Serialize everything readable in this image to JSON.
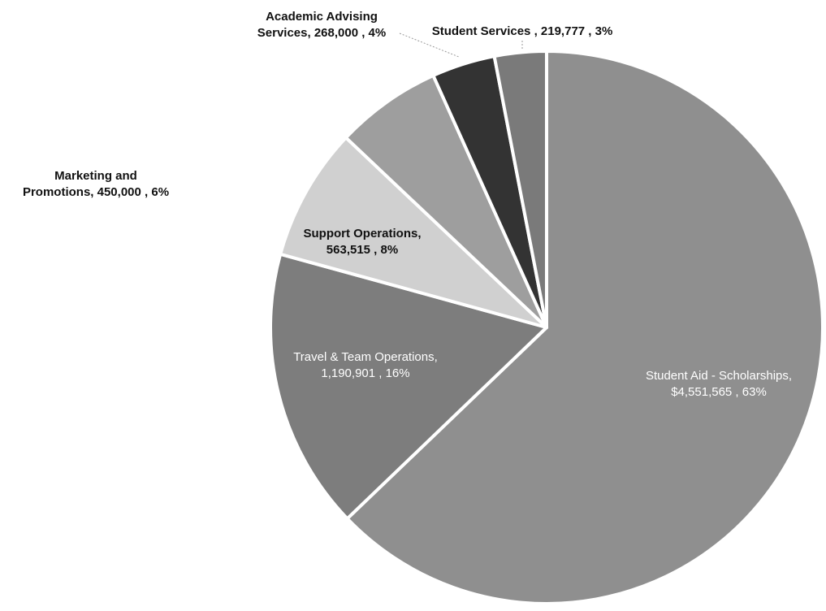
{
  "chart_data": {
    "type": "pie",
    "title": "",
    "slices": [
      {
        "name": "Student Aid - Scholarships",
        "value": 4551565,
        "percent": 63,
        "color": "#8f8f8f",
        "label_lines": [
          "Student Aid - Scholarships,",
          "$4,551,565 , 63%"
        ],
        "label_color": "#ffffff",
        "label_weight": "normal"
      },
      {
        "name": "Travel & Team Operations",
        "value": 1190901,
        "percent": 16,
        "color": "#7d7d7d",
        "label_lines": [
          "Travel & Team Operations,",
          "1,190,901 , 16%"
        ],
        "label_color": "#ffffff",
        "label_weight": "normal"
      },
      {
        "name": "Support Operations",
        "value": 563515,
        "percent": 8,
        "color": "#d0d0d0",
        "label_lines": [
          "Support Operations,",
          "563,515 , 8%"
        ],
        "label_color": "#111111",
        "label_weight": "bold"
      },
      {
        "name": "Marketing and Promotions",
        "value": 450000,
        "percent": 6,
        "color": "#9e9e9e",
        "label_lines": [
          "Marketing and",
          "Promotions, 450,000 , 6%"
        ],
        "label_color": "#111111",
        "label_weight": "bold"
      },
      {
        "name": "Academic Advising Services",
        "value": 268000,
        "percent": 4,
        "color": "#333333",
        "label_lines": [
          "Academic Advising",
          "Services, 268,000 , 4%"
        ],
        "label_color": "#111111",
        "label_weight": "bold"
      },
      {
        "name": "Student Services",
        "value": 219777,
        "percent": 3,
        "color": "#7a7a7a",
        "label_lines": [
          "Student Services , 219,777 , 3%"
        ],
        "label_color": "#111111",
        "label_weight": "bold"
      }
    ]
  }
}
